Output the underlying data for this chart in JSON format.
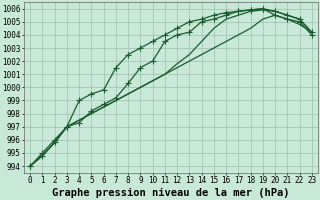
{
  "title": "Graphe pression niveau de la mer (hPa)",
  "background_color": "#c8e8d8",
  "plot_bg_color": "#c8e8d8",
  "grid_color": "#9dbfad",
  "line_color": "#1a5c30",
  "xlim": [
    -0.5,
    23.5
  ],
  "ylim": [
    993.5,
    1006.5
  ],
  "xticks": [
    0,
    1,
    2,
    3,
    4,
    5,
    6,
    7,
    8,
    9,
    10,
    11,
    12,
    13,
    14,
    15,
    16,
    17,
    18,
    19,
    20,
    21,
    22,
    23
  ],
  "yticks": [
    994,
    995,
    996,
    997,
    998,
    999,
    1000,
    1001,
    1002,
    1003,
    1004,
    1005,
    1006
  ],
  "series": [
    {
      "y": [
        994.0,
        995.0,
        996.0,
        997.0,
        999.0,
        999.5,
        999.8,
        1001.5,
        1002.5,
        1003.0,
        1003.5,
        1004.0,
        1004.5,
        1005.0,
        1005.2,
        1005.5,
        1005.7,
        1005.8,
        1005.9,
        1006.0,
        1005.8,
        1005.5,
        1005.2,
        1004.2
      ],
      "marker": true
    },
    {
      "y": [
        994.0,
        994.8,
        995.8,
        997.0,
        997.3,
        998.2,
        998.7,
        999.2,
        1000.3,
        1001.5,
        1002.0,
        1003.5,
        1004.0,
        1004.2,
        1005.0,
        1005.2,
        1005.5,
        1005.8,
        1005.9,
        1006.0,
        1005.5,
        1005.2,
        1005.0,
        1004.0
      ],
      "marker": true
    },
    {
      "y": [
        994.0,
        994.8,
        995.8,
        997.0,
        997.5,
        998.0,
        998.5,
        999.0,
        999.5,
        1000.0,
        1000.5,
        1001.0,
        1001.8,
        1002.5,
        1003.5,
        1004.5,
        1005.2,
        1005.5,
        1005.8,
        1005.9,
        1005.8,
        1005.5,
        1005.2,
        1004.2
      ],
      "marker": false
    },
    {
      "y": [
        994.0,
        994.8,
        995.8,
        997.0,
        997.5,
        998.0,
        998.5,
        999.0,
        999.5,
        1000.0,
        1000.5,
        1001.0,
        1001.5,
        1002.0,
        1002.5,
        1003.0,
        1003.5,
        1004.0,
        1004.5,
        1005.2,
        1005.5,
        1005.2,
        1004.8,
        1004.2
      ],
      "marker": false
    }
  ],
  "marker_style": "+",
  "marker_size": 4,
  "line_width": 0.9,
  "title_fontsize": 7.5,
  "tick_fontsize": 5.5
}
